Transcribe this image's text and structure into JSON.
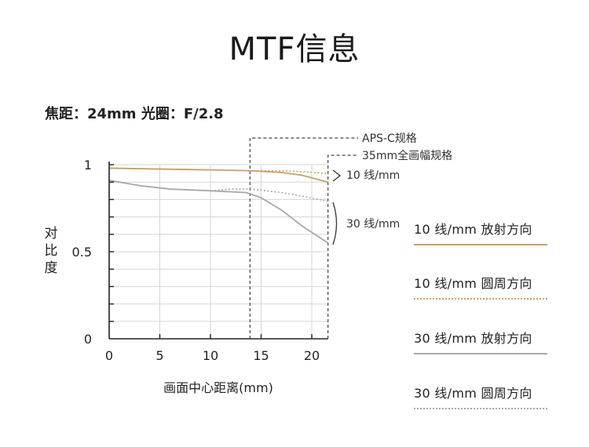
{
  "header": {
    "title": "MTF信息"
  },
  "subtitle": "焦距：24mm  光圈：F/2.8",
  "axis": {
    "ylabel": "对比度",
    "xlabel": "画面中心距离(mm)",
    "xticks": [
      "0",
      "5",
      "10",
      "15",
      "20"
    ],
    "yticks": [
      "0",
      "0.5",
      "1"
    ]
  },
  "annotations": {
    "apsc": "APS-C规格",
    "fullframe": "35mm全画幅规格",
    "group10": "10 线/mm",
    "group30": "30 线/mm"
  },
  "legend": [
    {
      "label": "10 线/mm  放射方向",
      "color": "#c8a06a",
      "style": "solid"
    },
    {
      "label": "10 线/mm  圆周方向",
      "color": "#c8a06a",
      "style": "dotted"
    },
    {
      "label": "30 线/mm  放射方向",
      "color": "#a8a8a8",
      "style": "solid"
    },
    {
      "label": "30 线/mm  圆周方向",
      "color": "#a8a8a8",
      "style": "dotted"
    }
  ],
  "chart_data": {
    "type": "line",
    "title": "MTF信息",
    "xlabel": "画面中心距离(mm)",
    "ylabel": "对比度",
    "xlim": [
      0,
      21.6
    ],
    "ylim": [
      0,
      1
    ],
    "grid": true,
    "reference_lines": [
      {
        "label": "APS-C规格",
        "x": 13.9
      },
      {
        "label": "35mm全画幅规格",
        "x": 21.6
      }
    ],
    "series": [
      {
        "name": "10 线/mm  放射方向",
        "color": "#c8a06a",
        "dash": "solid",
        "x": [
          0,
          5,
          10,
          14,
          17,
          19,
          21.6
        ],
        "y": [
          0.98,
          0.975,
          0.97,
          0.965,
          0.955,
          0.94,
          0.9
        ]
      },
      {
        "name": "10 线/mm  圆周方向",
        "color": "#c8a06a",
        "dash": "dotted",
        "x": [
          0,
          5,
          10,
          14,
          17,
          19,
          21.6
        ],
        "y": [
          0.98,
          0.975,
          0.97,
          0.965,
          0.965,
          0.96,
          0.95
        ]
      },
      {
        "name": "30 线/mm  放射方向",
        "color": "#a8a8a8",
        "dash": "solid",
        "x": [
          0,
          3,
          6,
          10,
          13.5,
          15,
          17,
          19,
          21.6
        ],
        "y": [
          0.91,
          0.88,
          0.86,
          0.85,
          0.84,
          0.81,
          0.74,
          0.65,
          0.55
        ]
      },
      {
        "name": "30 线/mm  圆周方向",
        "color": "#a8a8a8",
        "dash": "dotted",
        "x": [
          0,
          3,
          6,
          10,
          12,
          14,
          17,
          19,
          21.6
        ],
        "y": [
          0.91,
          0.88,
          0.86,
          0.85,
          0.86,
          0.86,
          0.84,
          0.82,
          0.79
        ]
      }
    ]
  }
}
